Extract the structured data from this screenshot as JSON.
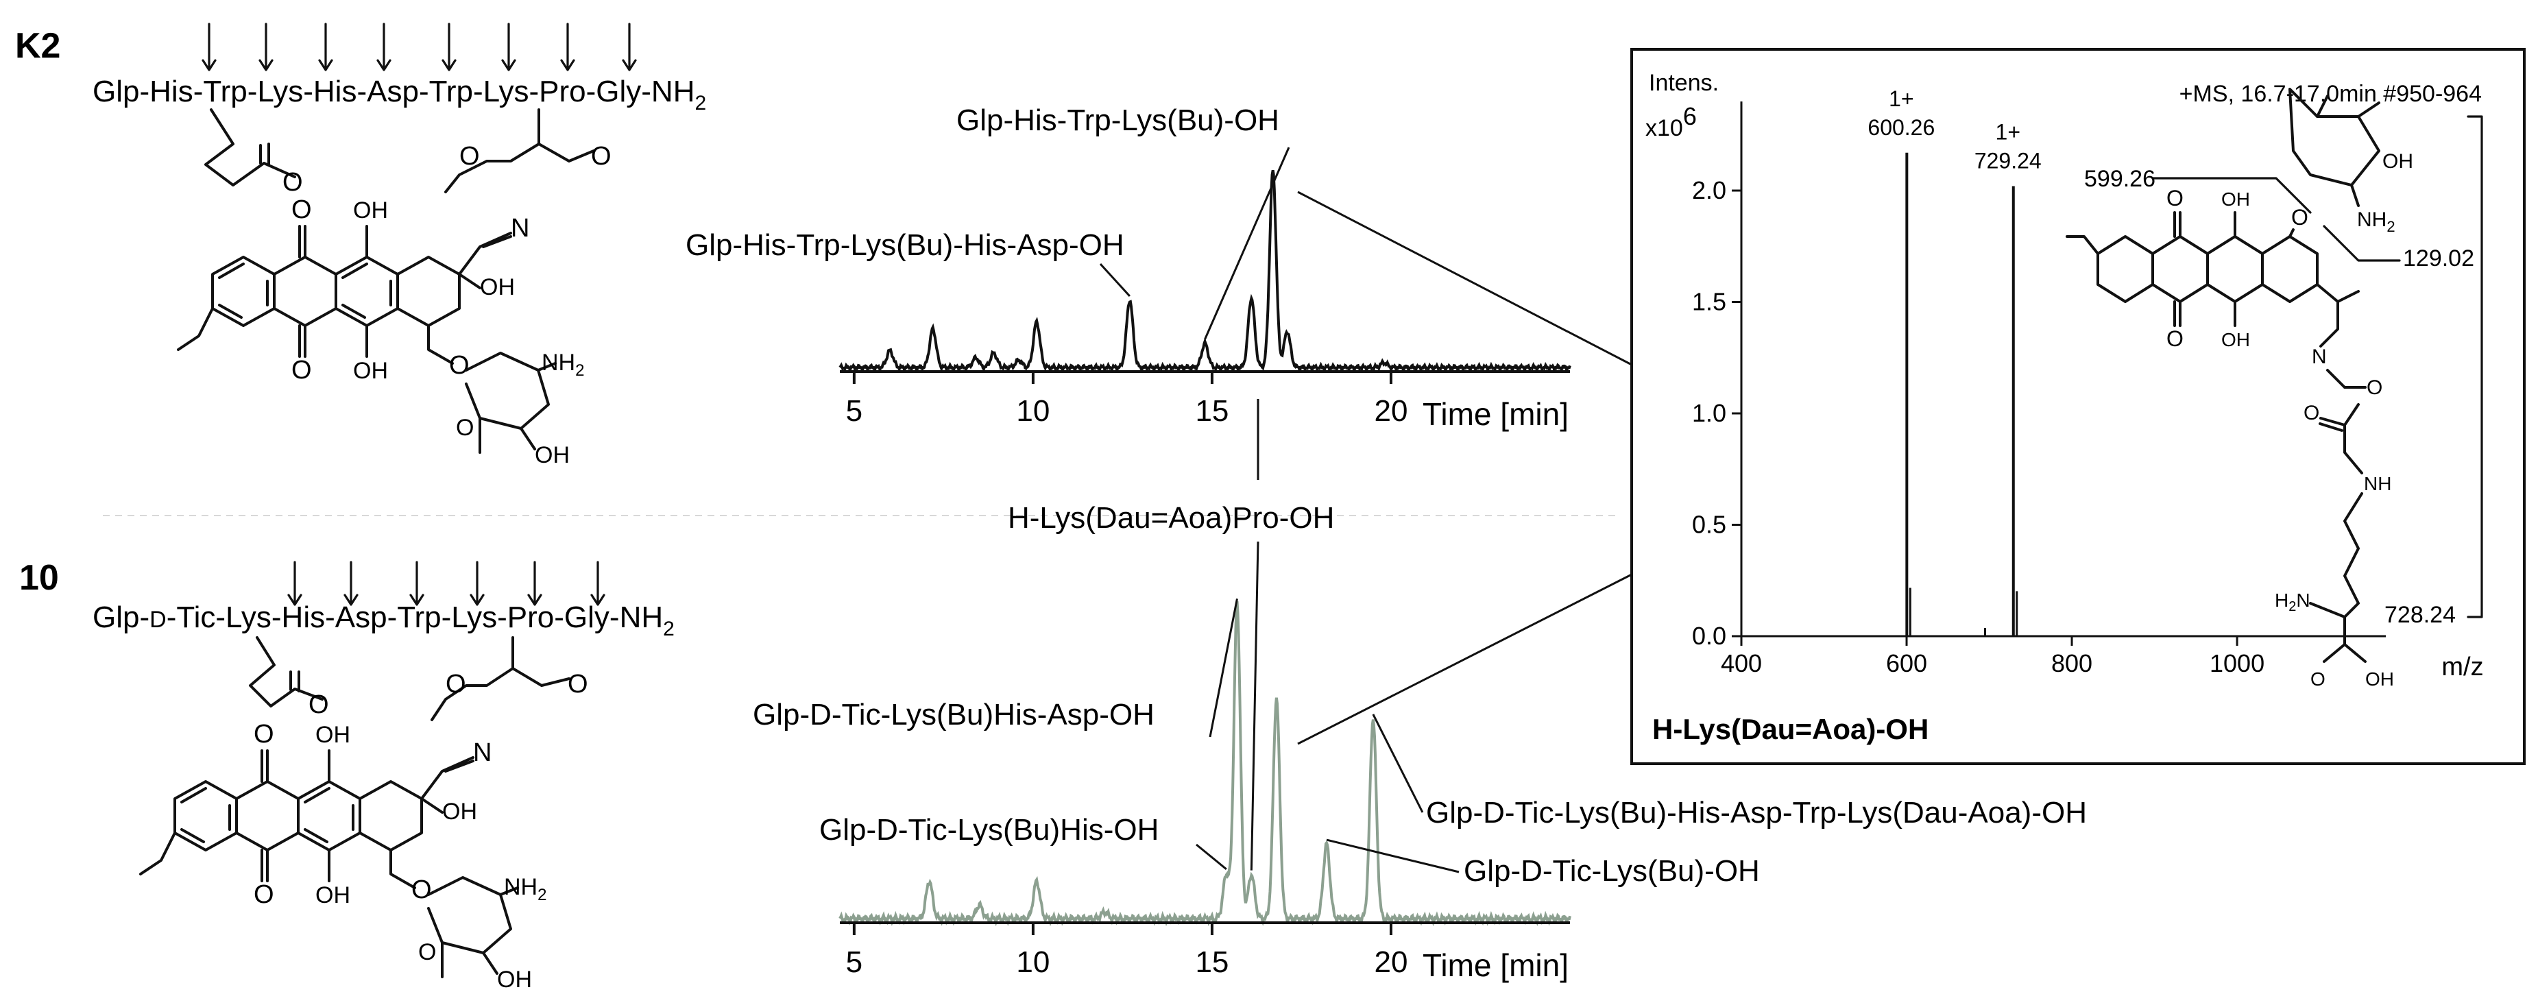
{
  "panels": {
    "k2_label": "K2",
    "c10_label": "10"
  },
  "k2": {
    "seq": [
      "Glp",
      "His",
      "Trp",
      "Lys",
      "His",
      "Asp",
      "Trp",
      "Lys",
      "Pro",
      "Gly",
      "NH",
      "2"
    ],
    "atoms": {
      "o1": "O",
      "o2": "O",
      "o3": "O",
      "oh1": "OH",
      "oh2": "OH",
      "oh3": "OH",
      "oh4": "OH",
      "o4": "O",
      "o5": "O",
      "n1": "N",
      "o6": "O",
      "nh2": "NH",
      "nh2sub": "2",
      "o7": "O",
      "o8": "O"
    }
  },
  "c10": {
    "seq": [
      "Glp",
      "-",
      "D",
      "-",
      "Tic",
      "Lys",
      "His",
      "Asp",
      "Trp",
      "Lys",
      "Pro",
      "Gly",
      "NH",
      "2"
    ],
    "atoms": {
      "o1": "O",
      "o2": "O",
      "o3": "O",
      "oh1": "OH",
      "oh2": "OH",
      "oh3": "OH",
      "oh4": "OH",
      "o4": "O",
      "o5": "O",
      "n1": "N",
      "o6": "O",
      "nh2": "NH",
      "nh2sub": "2",
      "o7": "O",
      "o8": "O"
    }
  },
  "dau_ms": {
    "atoms": {
      "oh1": "OH",
      "nh2": "NH",
      "nh2sub": "2",
      "o1": "O",
      "o2": "O",
      "o3": "O",
      "oh2": "OH",
      "oh3": "OH",
      "n1": "N",
      "o4": "O",
      "o5": "O",
      "nh": "NH",
      "h2n": "H",
      "h2nsub": "2",
      "h2nn": "N",
      "o6": "O",
      "oh4": "OH"
    },
    "frag_labels": [
      "599.26",
      "129.02",
      "728.24"
    ]
  },
  "chart_data": [
    {
      "type": "line",
      "id": "chromatogram-k2",
      "xlabel": "Time [min]",
      "ylabel": "",
      "xlim": [
        4.6,
        25.0
      ],
      "x_ticks": [
        5,
        10,
        15,
        20
      ],
      "line_color": "#111111",
      "peaks": [
        {
          "x": 6.0,
          "h": 0.07
        },
        {
          "x": 7.2,
          "h": 0.16
        },
        {
          "x": 8.4,
          "h": 0.04
        },
        {
          "x": 8.9,
          "h": 0.06
        },
        {
          "x": 9.6,
          "h": 0.03
        },
        {
          "x": 10.1,
          "h": 0.19
        },
        {
          "x": 12.7,
          "h": 0.28
        },
        {
          "x": 14.8,
          "h": 0.1
        },
        {
          "x": 16.1,
          "h": 0.29
        },
        {
          "x": 16.7,
          "h": 0.82
        },
        {
          "x": 17.1,
          "h": 0.15
        },
        {
          "x": 19.8,
          "h": 0.02
        }
      ],
      "annotations": [
        {
          "text": "Glp-His-Trp-Lys(Bu)-OH",
          "x": 14.8
        },
        {
          "text": "Glp-His-Trp-Lys(Bu)-His-Asp-OH",
          "x": 12.7
        }
      ]
    },
    {
      "type": "line",
      "id": "chromatogram-10",
      "xlabel": "Time [min]",
      "ylabel": "",
      "xlim": [
        4.6,
        25.0
      ],
      "x_ticks": [
        5,
        10,
        15,
        20
      ],
      "line_color": "#8ca090",
      "peaks": [
        {
          "x": 7.1,
          "h": 0.11
        },
        {
          "x": 8.5,
          "h": 0.04
        },
        {
          "x": 10.1,
          "h": 0.11
        },
        {
          "x": 12.0,
          "h": 0.02
        },
        {
          "x": 15.4,
          "h": 0.13
        },
        {
          "x": 15.7,
          "h": 0.93
        },
        {
          "x": 16.1,
          "h": 0.13
        },
        {
          "x": 16.8,
          "h": 0.65
        },
        {
          "x": 18.2,
          "h": 0.22
        },
        {
          "x": 19.5,
          "h": 0.59
        }
      ],
      "annotations": [
        {
          "text": "H-Lys(Dau=Aoa)Pro-OH",
          "x": 16.1
        },
        {
          "text": "Glp-D-Tic-Lys(Bu)His-Asp-OH",
          "x": 15.7
        },
        {
          "text": "Glp-D-Tic-Lys(Bu)His-OH",
          "x": 15.4
        },
        {
          "text": "Glp-D-Tic-Lys(Bu)-His-Asp-Trp-Lys(Dau-Aoa)-OH",
          "x": 19.5
        },
        {
          "text": "Glp-D-Tic-Lys(Bu)-OH",
          "x": 18.2
        }
      ]
    },
    {
      "type": "bar",
      "id": "mass-spectrum",
      "title": "H-Lys(Dau=Aoa)-OH",
      "header": "+MS, 16.7-17.0min #950-964",
      "ylabel": "Intens.",
      "y_multiplier": "x10",
      "y_multiplier_exp": "6",
      "xlabel": "m/z",
      "xlim": [
        400,
        1180
      ],
      "ylim": [
        0,
        2.4
      ],
      "x_ticks": [
        400,
        600,
        800,
        1000
      ],
      "y_ticks": [
        0.0,
        0.5,
        1.0,
        1.5,
        2.0
      ],
      "peaks": [
        {
          "mz": 600.26,
          "intensity": 2.17,
          "label": "600.26",
          "charge": "1+"
        },
        {
          "mz": 729.24,
          "intensity": 2.02,
          "label": "729.24",
          "charge": "1+"
        }
      ]
    }
  ]
}
